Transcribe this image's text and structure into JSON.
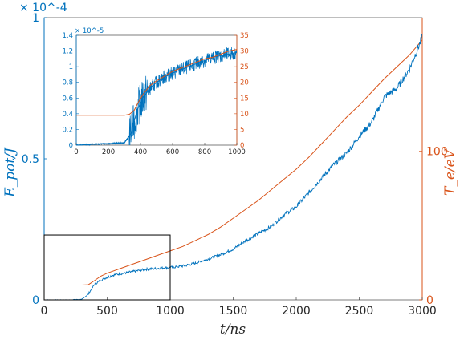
{
  "chart_data": [
    {
      "type": "line",
      "title": "",
      "xlabel": "t/ns",
      "y1label": "E_pot/J",
      "y2label": "T_e/eV",
      "xlim": [
        0,
        3000
      ],
      "y1lim": [
        0,
        1.0
      ],
      "y1_exponent": "× 10^-4",
      "y2lim": [
        0,
        190
      ],
      "xticks": [
        "0",
        "500",
        "1000",
        "1500",
        "2000",
        "2500",
        "3000"
      ],
      "y1ticks": [
        "0",
        "0.5",
        "1"
      ],
      "y2ticks": [
        "0",
        "100"
      ],
      "colors": {
        "epot": "#0072bd",
        "te": "#d95319",
        "box": "#000000"
      },
      "series": [
        {
          "axis": "left",
          "x": [
            0,
            200,
            300,
            350,
            400,
            450,
            500,
            550,
            600,
            700,
            800,
            900,
            1000,
            1100,
            1200,
            1300,
            1400,
            1500,
            1600,
            1700,
            1800,
            1900,
            2000,
            2100,
            2200,
            2300,
            2400,
            2500,
            2600,
            2700,
            2800,
            2900,
            3000
          ],
          "values": [
            0,
            0,
            0.002,
            0.02,
            0.055,
            0.07,
            0.08,
            0.088,
            0.092,
            0.1,
            0.108,
            0.112,
            0.115,
            0.12,
            0.13,
            0.145,
            0.16,
            0.18,
            0.21,
            0.235,
            0.26,
            0.3,
            0.33,
            0.38,
            0.43,
            0.48,
            0.52,
            0.58,
            0.63,
            0.72,
            0.75,
            0.82,
            0.93
          ]
        },
        {
          "axis": "right",
          "x": [
            0,
            300,
            350,
            400,
            450,
            500,
            600,
            700,
            800,
            900,
            1000,
            1100,
            1200,
            1300,
            1400,
            1500,
            1600,
            1700,
            1800,
            1900,
            2000,
            2100,
            2200,
            2300,
            2400,
            2500,
            2600,
            2700,
            2800,
            2900,
            3000
          ],
          "values": [
            10,
            10,
            10.2,
            13,
            16,
            18,
            21,
            24,
            27,
            30,
            33,
            36,
            40,
            44,
            49,
            55,
            61,
            67,
            74,
            81,
            88,
            96,
            105,
            114,
            123,
            131,
            140,
            149,
            157,
            165,
            175
          ]
        }
      ],
      "highlight_box": {
        "x": [
          0,
          1000
        ],
        "y": [
          0,
          0.23
        ]
      }
    },
    {
      "type": "line",
      "title": "",
      "xlim": [
        0,
        1000
      ],
      "y1lim": [
        0,
        1.4
      ],
      "y1_exponent": "× 10^-5",
      "y2lim": [
        0,
        35
      ],
      "xticks": [
        "0",
        "200",
        "400",
        "600",
        "800",
        "1000"
      ],
      "y1ticks": [
        "0",
        "0.2",
        "0.4",
        "0.6",
        "0.8",
        "1",
        "1.2",
        "1.4"
      ],
      "y2ticks": [
        "0",
        "5",
        "10",
        "15",
        "20",
        "25",
        "30",
        "35"
      ],
      "series": [
        {
          "axis": "left",
          "x": [
            0,
            100,
            200,
            300,
            340,
            380,
            420,
            460,
            500,
            550,
            600,
            650,
            700,
            750,
            800,
            850,
            900,
            950,
            1000
          ],
          "values": [
            0,
            0.01,
            0.02,
            0.03,
            0.15,
            0.45,
            0.62,
            0.72,
            0.8,
            0.87,
            0.92,
            0.96,
            1.0,
            1.04,
            1.08,
            1.12,
            1.14,
            1.16,
            1.18
          ]
        },
        {
          "axis": "right",
          "x": [
            0,
            300,
            330,
            360,
            390,
            420,
            460,
            500,
            550,
            600,
            650,
            700,
            750,
            800,
            850,
            900,
            950,
            1000
          ],
          "values": [
            9.5,
            9.5,
            9.8,
            11,
            14,
            16.5,
            19,
            20.5,
            22,
            23.5,
            24.5,
            25.5,
            26.5,
            27.5,
            28,
            29,
            30,
            30.5
          ]
        }
      ]
    }
  ]
}
